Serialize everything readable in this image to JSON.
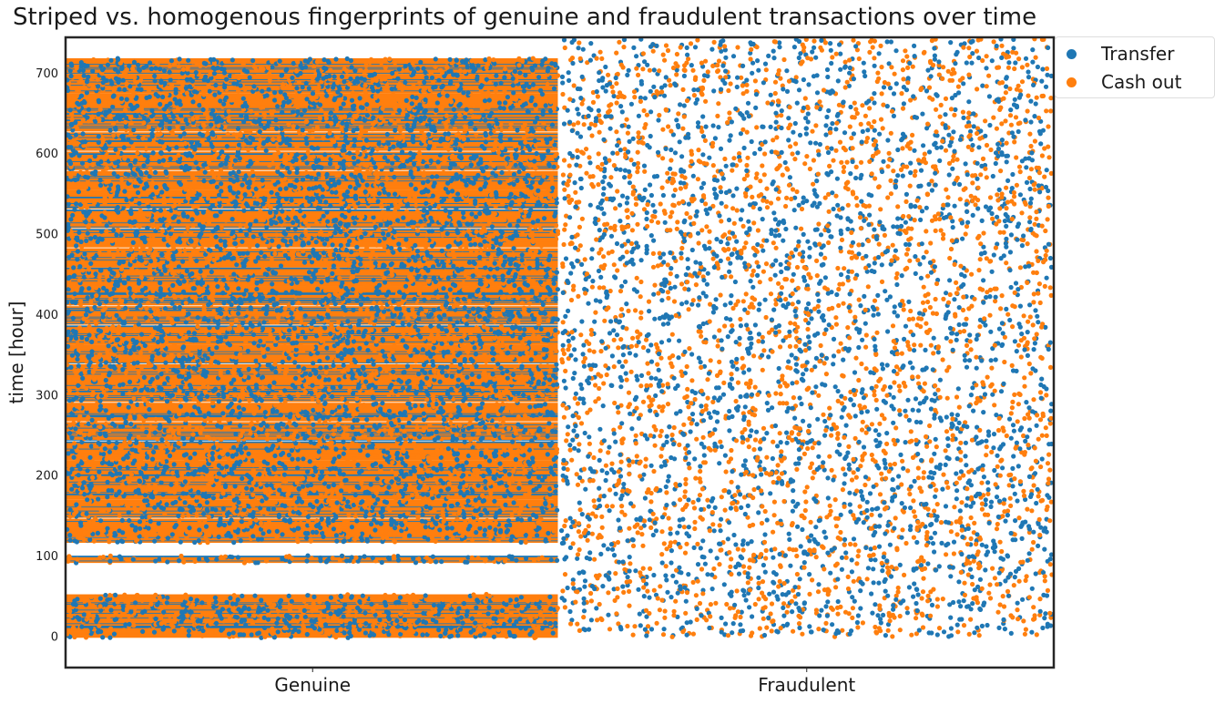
{
  "chart_data": {
    "type": "scatter",
    "title": "Striped vs. homogenous fingerprints of genuine and fraudulent transactions over time",
    "xlabel": "",
    "ylabel": "time [hour]",
    "categories": [
      "Genuine",
      "Fraudulent"
    ],
    "ylim": [
      -38,
      745
    ],
    "yticks": [
      0,
      100,
      200,
      300,
      400,
      500,
      600,
      700
    ],
    "grid": false,
    "legend_position": "outside-top-right",
    "series": [
      {
        "name": "Transfer",
        "color": "#1f77b4"
      },
      {
        "name": "Cash out",
        "color": "#ff7f0e"
      }
    ],
    "genuine": {
      "time_range": [
        0,
        718
      ],
      "empty_gaps": [
        [
          52,
          93
        ],
        [
          100,
          118
        ]
      ],
      "density": "dense horizontal stripes"
    },
    "fraudulent": {
      "time_range": [
        0,
        743
      ],
      "density": "uniformly scattered"
    }
  }
}
